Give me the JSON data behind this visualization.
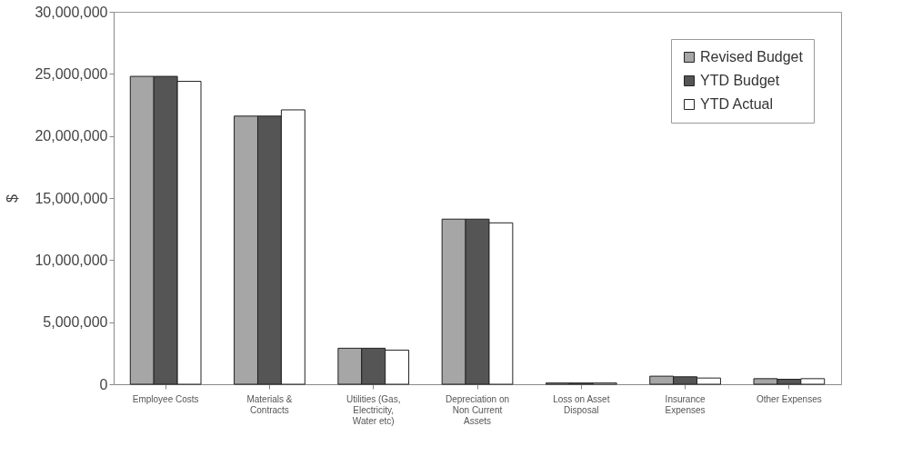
{
  "chart_data": {
    "type": "bar",
    "ylabel": "$",
    "categories": [
      "Employee Costs",
      "Materials & Contracts",
      "Utilities (Gas, Electricity, Water etc)",
      "Depreciation on Non Current Assets",
      "Loss on Asset Disposal",
      "Insurance Expenses",
      "Other Expenses"
    ],
    "series": [
      {
        "name": "Revised Budget",
        "color": "#a6a6a6",
        "values": [
          24800000,
          21600000,
          2900000,
          13300000,
          100000,
          650000,
          450000
        ]
      },
      {
        "name": "YTD Budget",
        "color": "#555555",
        "values": [
          24800000,
          21600000,
          2900000,
          13300000,
          100000,
          600000,
          400000
        ]
      },
      {
        "name": "YTD Actual",
        "color": "#ffffff",
        "values": [
          24400000,
          22100000,
          2750000,
          13000000,
          100000,
          500000,
          450000
        ]
      }
    ],
    "ylim": [
      0,
      30000000
    ],
    "yticks": [
      0,
      {
        "value": 5000000,
        "label": "5,000,000"
      },
      {
        "value": 10000000,
        "label": "10,000,000"
      },
      {
        "value": 15000000,
        "label": "15,000,000"
      },
      {
        "value": 20000000,
        "label": "20,000,000"
      },
      {
        "value": 25000000,
        "label": "25,000,000"
      },
      {
        "value": 30000000,
        "label": "30,000,000"
      }
    ],
    "grid": false,
    "legend": "top right"
  }
}
